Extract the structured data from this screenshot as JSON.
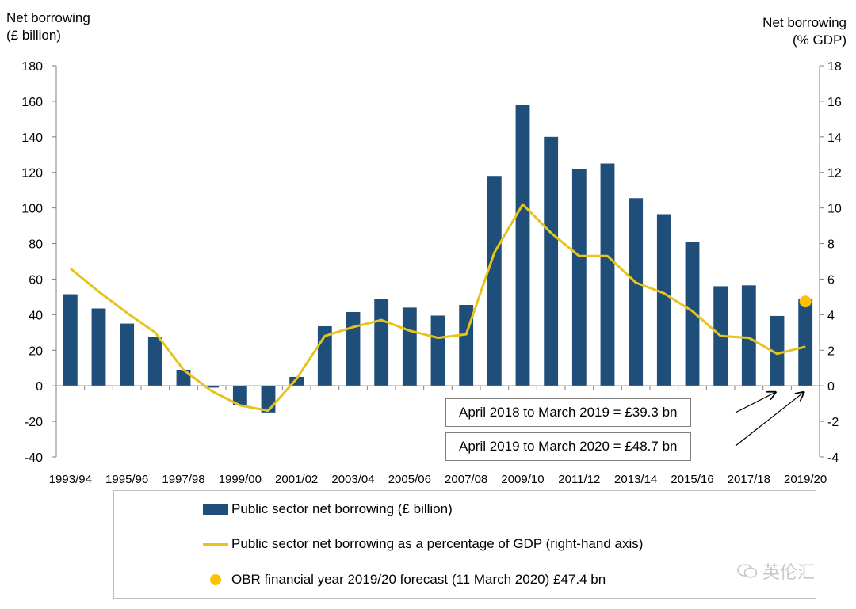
{
  "chart_data": {
    "type": "bar",
    "categories": [
      "1993/94",
      "1994/95",
      "1995/96",
      "1996/97",
      "1997/98",
      "1998/99",
      "1999/00",
      "2000/01",
      "2001/02",
      "2002/03",
      "2003/04",
      "2004/05",
      "2005/06",
      "2006/07",
      "2007/08",
      "2008/09",
      "2009/10",
      "2010/11",
      "2011/12",
      "2012/13",
      "2013/14",
      "2014/15",
      "2015/16",
      "2016/17",
      "2017/18",
      "2018/19",
      "2019/20"
    ],
    "tick_labels": [
      "1993/94",
      "1995/96",
      "1997/98",
      "1999/00",
      "2001/02",
      "2003/04",
      "2005/06",
      "2007/08",
      "2009/10",
      "2011/12",
      "2013/14",
      "2015/16",
      "2017/18",
      "2019/20"
    ],
    "series": [
      {
        "name": "Public sector net borrowing (£ billion)",
        "axis": "left",
        "kind": "bar",
        "values": [
          51.5,
          43.5,
          35,
          27.5,
          9,
          -1,
          -11,
          -15,
          5,
          33.5,
          41.5,
          49,
          44,
          39.5,
          45.5,
          118,
          158,
          140,
          122,
          125,
          105.5,
          96.5,
          81,
          56,
          56.5,
          39.3,
          48.7
        ]
      },
      {
        "name": "Public sector net borrowing as a percentage of GDP (right-hand axis)",
        "axis": "right",
        "kind": "line",
        "values": [
          6.6,
          5.3,
          4.1,
          3.0,
          0.9,
          -0.3,
          -1.1,
          -1.4,
          0.4,
          2.8,
          3.3,
          3.7,
          3.1,
          2.7,
          2.9,
          7.5,
          10.2,
          8.6,
          7.3,
          7.3,
          5.8,
          5.2,
          4.2,
          2.8,
          2.7,
          1.8,
          2.2
        ]
      },
      {
        "name": "OBR financial year 2019/20 forecast (11 March 2020) £47.4 bn",
        "axis": "left",
        "kind": "point",
        "category": "2019/20",
        "value": 47.4
      }
    ],
    "ylim": [
      -40,
      180
    ],
    "y2lim": [
      -4,
      18
    ],
    "yticks": [
      -40,
      -20,
      0,
      20,
      40,
      60,
      80,
      100,
      120,
      140,
      160,
      180
    ],
    "y2ticks": [
      -4,
      -2,
      0,
      2,
      4,
      6,
      8,
      10,
      12,
      14,
      16,
      18
    ],
    "ylabel": "Net borrowing (£ billion)",
    "ylabel_lines": [
      "Net borrowing",
      "(£ billion)"
    ],
    "y2label": "Net borrowing (% GDP)",
    "y2label_lines": [
      "Net borrowing",
      "(% GDP)"
    ],
    "annotations": [
      "April 2018 to March 2019  = £39.3 bn",
      "April 2019 to March 2020  = £48.7 bn"
    ],
    "legend": [
      "Public sector net borrowing (£ billion)",
      "Public sector net borrowing as a percentage of GDP (right-hand axis)",
      "OBR financial year 2019/20 forecast (11 March 2020) £47.4 bn"
    ],
    "colors": {
      "bar": "#1f4e79",
      "line": "#e6c31e",
      "forecast": "#ffc000",
      "axis": "#7f7f7f"
    }
  },
  "watermark": "英伦汇"
}
